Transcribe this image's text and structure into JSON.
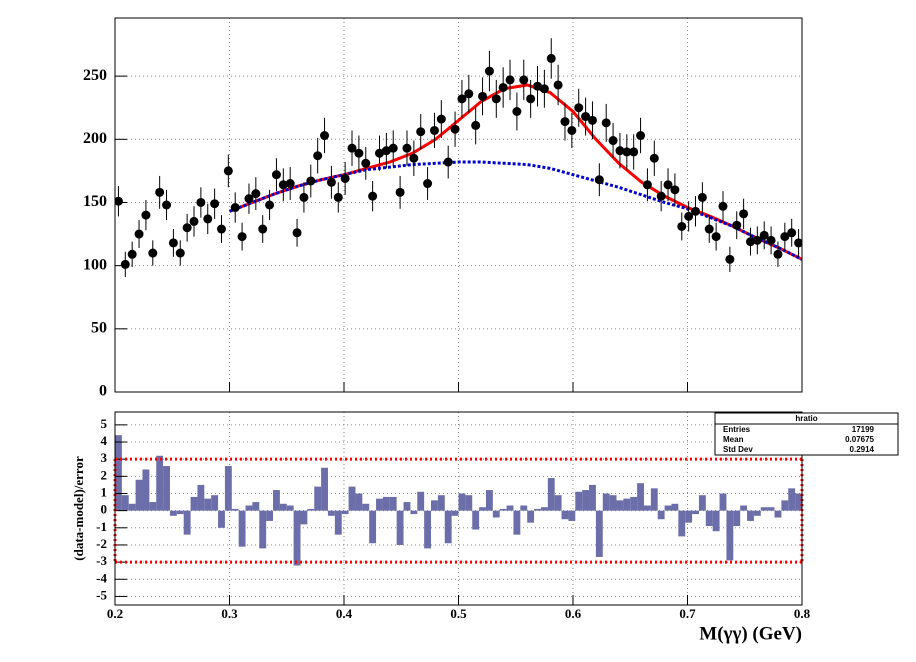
{
  "chart_data": [
    {
      "type": "errorbar",
      "x": [
        0.203,
        0.209,
        0.215,
        0.221,
        0.227,
        0.233,
        0.239,
        0.245,
        0.251,
        0.257,
        0.263,
        0.269,
        0.275,
        0.281,
        0.287,
        0.293,
        0.299,
        0.305,
        0.311,
        0.317,
        0.323,
        0.329,
        0.335,
        0.341,
        0.347,
        0.353,
        0.359,
        0.365,
        0.371,
        0.377,
        0.383,
        0.389,
        0.395,
        0.401,
        0.407,
        0.413,
        0.419,
        0.425,
        0.431,
        0.437,
        0.443,
        0.449,
        0.455,
        0.461,
        0.467,
        0.473,
        0.479,
        0.485,
        0.491,
        0.497,
        0.503,
        0.509,
        0.515,
        0.521,
        0.527,
        0.533,
        0.539,
        0.545,
        0.551,
        0.557,
        0.563,
        0.569,
        0.575,
        0.581,
        0.587,
        0.593,
        0.599,
        0.605,
        0.611,
        0.617,
        0.623,
        0.629,
        0.635,
        0.641,
        0.647,
        0.653,
        0.659,
        0.665,
        0.671,
        0.677,
        0.683,
        0.689,
        0.695,
        0.701,
        0.707,
        0.713,
        0.719,
        0.725,
        0.731,
        0.737,
        0.743,
        0.749,
        0.755,
        0.761,
        0.767,
        0.773,
        0.779,
        0.785,
        0.791,
        0.797
      ],
      "values": [
        151,
        101,
        109,
        125,
        140,
        110,
        158,
        148,
        118,
        110,
        130,
        135,
        150,
        137,
        149,
        129,
        175,
        146,
        123,
        153,
        157,
        129,
        148,
        172,
        164,
        165,
        126,
        154,
        167,
        187,
        203,
        166,
        154,
        169,
        193,
        189,
        181,
        155,
        189,
        191,
        193,
        158,
        193,
        185,
        206,
        165,
        207,
        216,
        182,
        208,
        232,
        236,
        211,
        234,
        254,
        232,
        241,
        247,
        222,
        247,
        232,
        242,
        240,
        264,
        243,
        214,
        207,
        225,
        218,
        215,
        168,
        213,
        199,
        191,
        190,
        190,
        203,
        164,
        185,
        155,
        164,
        160,
        131,
        139,
        143,
        154,
        129,
        123,
        147,
        105,
        132,
        141,
        119,
        120,
        124,
        120,
        109,
        123,
        126,
        118
      ],
      "errors": [
        12,
        10,
        10,
        11,
        12,
        10,
        13,
        12,
        11,
        10,
        11,
        12,
        12,
        12,
        12,
        11,
        13,
        12,
        11,
        12,
        13,
        11,
        12,
        13,
        13,
        13,
        11,
        12,
        13,
        14,
        14,
        13,
        12,
        13,
        14,
        14,
        13,
        12,
        14,
        14,
        14,
        13,
        14,
        14,
        14,
        13,
        14,
        15,
        13,
        14,
        15,
        15,
        15,
        15,
        16,
        15,
        16,
        16,
        15,
        16,
        15,
        16,
        15,
        16,
        16,
        15,
        14,
        15,
        15,
        15,
        13,
        15,
        14,
        14,
        14,
        14,
        14,
        13,
        14,
        12,
        13,
        13,
        11,
        12,
        12,
        12,
        11,
        11,
        12,
        10,
        11,
        12,
        11,
        11,
        11,
        11,
        10,
        11,
        11,
        11
      ],
      "color": "#000000",
      "curves": [
        {
          "x": [
            0.3,
            0.32,
            0.34,
            0.36,
            0.38,
            0.4,
            0.42,
            0.44,
            0.46,
            0.48,
            0.5,
            0.52,
            0.54,
            0.56,
            0.58,
            0.6,
            0.62,
            0.64,
            0.66,
            0.68,
            0.7,
            0.72,
            0.74,
            0.76,
            0.78,
            0.8
          ],
          "values": [
            143,
            150,
            157,
            163,
            168,
            172,
            177,
            182,
            189,
            200,
            215,
            230,
            240,
            243,
            237,
            222,
            200,
            181,
            166,
            155,
            146,
            139,
            131,
            122,
            114,
            105
          ],
          "color": "#ff0000",
          "style": "solid"
        },
        {
          "x": [
            0.3,
            0.32,
            0.34,
            0.36,
            0.38,
            0.4,
            0.42,
            0.44,
            0.46,
            0.48,
            0.5,
            0.52,
            0.54,
            0.56,
            0.58,
            0.6,
            0.62,
            0.64,
            0.66,
            0.68,
            0.7,
            0.72,
            0.74,
            0.76,
            0.78,
            0.8
          ],
          "values": [
            143,
            150,
            157,
            163,
            168,
            172,
            176,
            178,
            180,
            181,
            182,
            182,
            181,
            180,
            177,
            172,
            167,
            162,
            156,
            150,
            145,
            138,
            131,
            122,
            114,
            105
          ],
          "color": "#0000cc",
          "style": "dotted"
        }
      ],
      "xlim": [
        0.2,
        0.8
      ],
      "xticks": [
        0.2,
        0.3,
        0.4,
        0.5,
        0.6,
        0.7,
        0.8
      ],
      "ylim": [
        0,
        296
      ],
      "yticks": [
        0,
        50,
        100,
        150,
        200,
        250
      ],
      "grid": true
    },
    {
      "type": "histogram",
      "bins": [
        0.2,
        0.206,
        0.212,
        0.218,
        0.224,
        0.23,
        0.236,
        0.242,
        0.248,
        0.254,
        0.26,
        0.266,
        0.272,
        0.278,
        0.284,
        0.29,
        0.296,
        0.302,
        0.308,
        0.314,
        0.32,
        0.326,
        0.332,
        0.338,
        0.344,
        0.35,
        0.356,
        0.362,
        0.368,
        0.374,
        0.38,
        0.386,
        0.392,
        0.398,
        0.404,
        0.41,
        0.416,
        0.422,
        0.428,
        0.434,
        0.44,
        0.446,
        0.452,
        0.458,
        0.464,
        0.47,
        0.476,
        0.482,
        0.488,
        0.494,
        0.5,
        0.506,
        0.512,
        0.518,
        0.524,
        0.53,
        0.536,
        0.542,
        0.548,
        0.554,
        0.56,
        0.566,
        0.572,
        0.578,
        0.584,
        0.59,
        0.596,
        0.602,
        0.608,
        0.614,
        0.62,
        0.626,
        0.632,
        0.638,
        0.644,
        0.65,
        0.656,
        0.662,
        0.668,
        0.674,
        0.68,
        0.686,
        0.692,
        0.698,
        0.704,
        0.71,
        0.716,
        0.722,
        0.728,
        0.734,
        0.74,
        0.746,
        0.752,
        0.758,
        0.764,
        0.77,
        0.776,
        0.782,
        0.788,
        0.794,
        0.8
      ],
      "values": [
        4.4,
        0.9,
        0.4,
        1.8,
        2.4,
        0.5,
        3.2,
        2.6,
        -0.3,
        -0.2,
        -1.4,
        0.8,
        1.5,
        0.7,
        0.9,
        -1.0,
        2.6,
        0.1,
        -2.1,
        0.3,
        0.5,
        -2.2,
        -0.6,
        1.2,
        0.4,
        0.3,
        -3.2,
        -0.8,
        0.1,
        1.4,
        2.5,
        -0.3,
        -1.4,
        -0.2,
        1.4,
        1.0,
        0.4,
        -1.9,
        0.7,
        0.8,
        0.8,
        -2.0,
        0.5,
        -0.2,
        1.1,
        -2.2,
        0.6,
        0.9,
        -1.9,
        -0.3,
        1.0,
        0.9,
        -1.1,
        0.2,
        1.2,
        -0.4,
        0.1,
        0.3,
        -1.4,
        0.3,
        -0.7,
        0.1,
        0.2,
        1.9,
        0.9,
        -0.5,
        -0.6,
        1.1,
        1.2,
        1.5,
        -2.7,
        1.0,
        0.9,
        0.6,
        0.7,
        0.8,
        1.6,
        0.3,
        1.3,
        -0.5,
        0.3,
        0.4,
        -1.5,
        -0.7,
        -0.2,
        0.9,
        -0.9,
        -1.2,
        1.0,
        -2.9,
        -0.9,
        0.3,
        -0.6,
        -0.3,
        0.2,
        0.2,
        -0.4,
        0.6,
        1.3,
        1.0
      ],
      "color": "#6b6ea8",
      "reference_lines": [
        3,
        -3
      ],
      "reference_color": "#ff0000",
      "xlim": [
        0.2,
        0.8
      ],
      "xticks": [
        0.2,
        0.3,
        0.4,
        0.5,
        0.6,
        0.7,
        0.8
      ],
      "ylim": [
        -5.5,
        5.75
      ],
      "yticks": [
        -5,
        -4,
        -3,
        -2,
        -1,
        0,
        1,
        2,
        3,
        4,
        5
      ],
      "grid": true,
      "x_label": "M(γγ) (GeV)",
      "y_label": "(data-model)/error"
    }
  ],
  "stats_box": {
    "title": "hratio",
    "rows": [
      [
        "Entries",
        17199
      ],
      [
        "Mean",
        0.07675
      ],
      [
        "Std Dev",
        0.2914
      ]
    ]
  }
}
